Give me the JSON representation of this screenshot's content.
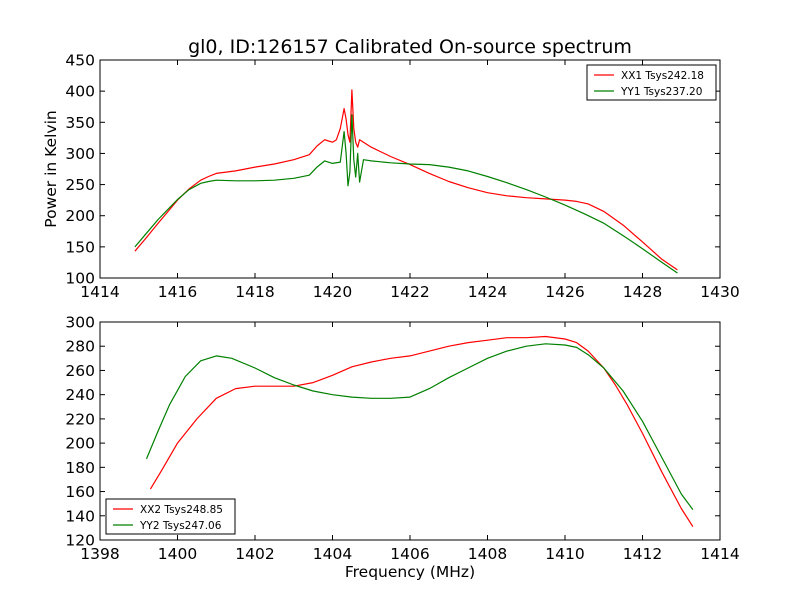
{
  "figure": {
    "title": "gl0, ID:126157 Calibrated On-source spectrum"
  },
  "chart_data": [
    {
      "type": "line",
      "title": "gl0, ID:126157 Calibrated On-source spectrum",
      "xlabel": "",
      "ylabel": "Power in Kelvin",
      "xlim": [
        1414,
        1430
      ],
      "ylim": [
        100,
        450
      ],
      "xticks": [
        1414,
        1416,
        1418,
        1420,
        1422,
        1424,
        1426,
        1428,
        1430
      ],
      "yticks": [
        100,
        150,
        200,
        250,
        300,
        350,
        400,
        450
      ],
      "legend_position": "top-right",
      "grid": false,
      "series": [
        {
          "name": "XX1 Tsys242.18",
          "color": "#ff0000",
          "x": [
            1414.9,
            1415.2,
            1415.5,
            1415.8,
            1416.0,
            1416.3,
            1416.6,
            1416.8,
            1417.0,
            1417.5,
            1418.0,
            1418.5,
            1419.0,
            1419.4,
            1419.6,
            1419.8,
            1419.9,
            1420.0,
            1420.1,
            1420.2,
            1420.3,
            1420.35,
            1420.4,
            1420.45,
            1420.5,
            1420.55,
            1420.6,
            1420.65,
            1420.7,
            1420.8,
            1421.0,
            1421.5,
            1422.0,
            1422.5,
            1423.0,
            1423.5,
            1424.0,
            1424.5,
            1425.0,
            1425.5,
            1426.0,
            1426.3,
            1426.6,
            1427.0,
            1427.5,
            1428.0,
            1428.5,
            1428.9
          ],
          "y": [
            143,
            165,
            188,
            210,
            225,
            243,
            257,
            263,
            268,
            272,
            278,
            283,
            290,
            298,
            312,
            322,
            320,
            318,
            322,
            340,
            372,
            355,
            330,
            318,
            402,
            340,
            318,
            310,
            322,
            318,
            310,
            295,
            282,
            268,
            255,
            245,
            237,
            232,
            229,
            227,
            225,
            223,
            219,
            207,
            185,
            158,
            130,
            113
          ]
        },
        {
          "name": "YY1 Tsys237.20",
          "color": "#008000",
          "x": [
            1414.9,
            1415.2,
            1415.5,
            1415.8,
            1416.0,
            1416.3,
            1416.6,
            1416.8,
            1417.0,
            1417.5,
            1418.0,
            1418.5,
            1419.0,
            1419.4,
            1419.6,
            1419.8,
            1420.0,
            1420.2,
            1420.3,
            1420.35,
            1420.4,
            1420.45,
            1420.5,
            1420.55,
            1420.6,
            1420.65,
            1420.7,
            1420.8,
            1421.0,
            1421.5,
            1422.0,
            1422.5,
            1423.0,
            1423.5,
            1424.0,
            1424.5,
            1425.0,
            1425.5,
            1426.0,
            1426.5,
            1427.0,
            1427.5,
            1428.0,
            1428.5,
            1428.9
          ],
          "y": [
            150,
            172,
            194,
            213,
            226,
            242,
            252,
            255,
            257,
            256,
            256,
            257,
            260,
            265,
            278,
            288,
            284,
            286,
            335,
            300,
            248,
            270,
            362,
            290,
            262,
            300,
            254,
            290,
            288,
            285,
            283,
            282,
            278,
            272,
            263,
            253,
            242,
            230,
            217,
            203,
            188,
            168,
            147,
            125,
            108
          ]
        }
      ]
    },
    {
      "type": "line",
      "title": "",
      "xlabel": "Frequency (MHz)",
      "ylabel": "",
      "xlim": [
        1398,
        1414
      ],
      "ylim": [
        120,
        300
      ],
      "xticks": [
        1398,
        1400,
        1402,
        1404,
        1406,
        1408,
        1410,
        1412,
        1414
      ],
      "yticks": [
        120,
        140,
        160,
        180,
        200,
        220,
        240,
        260,
        280,
        300
      ],
      "legend_position": "bottom-left",
      "grid": false,
      "series": [
        {
          "name": "XX2 Tsys248.85",
          "color": "#ff0000",
          "x": [
            1399.3,
            1399.6,
            1400.0,
            1400.5,
            1401.0,
            1401.5,
            1402.0,
            1402.5,
            1403.0,
            1403.5,
            1404.0,
            1404.5,
            1405.0,
            1405.5,
            1406.0,
            1406.5,
            1407.0,
            1407.5,
            1408.0,
            1408.5,
            1409.0,
            1409.5,
            1410.0,
            1410.3,
            1410.6,
            1411.0,
            1411.3,
            1411.6,
            1412.0,
            1412.5,
            1413.0,
            1413.3
          ],
          "y": [
            162,
            178,
            200,
            220,
            237,
            245,
            247,
            247,
            247,
            250,
            256,
            263,
            267,
            270,
            272,
            276,
            280,
            283,
            285,
            287,
            287,
            288,
            286,
            283,
            276,
            262,
            248,
            232,
            208,
            176,
            146,
            131
          ]
        },
        {
          "name": "YY2 Tsys247.06",
          "color": "#008000",
          "x": [
            1399.2,
            1399.5,
            1399.8,
            1400.2,
            1400.6,
            1401.0,
            1401.4,
            1402.0,
            1402.5,
            1403.0,
            1403.5,
            1404.0,
            1404.5,
            1405.0,
            1405.5,
            1406.0,
            1406.5,
            1407.0,
            1407.5,
            1408.0,
            1408.5,
            1409.0,
            1409.5,
            1410.0,
            1410.3,
            1410.6,
            1411.0,
            1411.5,
            1412.0,
            1412.5,
            1413.0,
            1413.3
          ],
          "y": [
            187,
            210,
            232,
            255,
            268,
            272,
            270,
            262,
            254,
            248,
            243,
            240,
            238,
            237,
            237,
            238,
            245,
            254,
            262,
            270,
            276,
            280,
            282,
            281,
            279,
            273,
            262,
            243,
            218,
            188,
            158,
            145
          ]
        }
      ]
    }
  ]
}
